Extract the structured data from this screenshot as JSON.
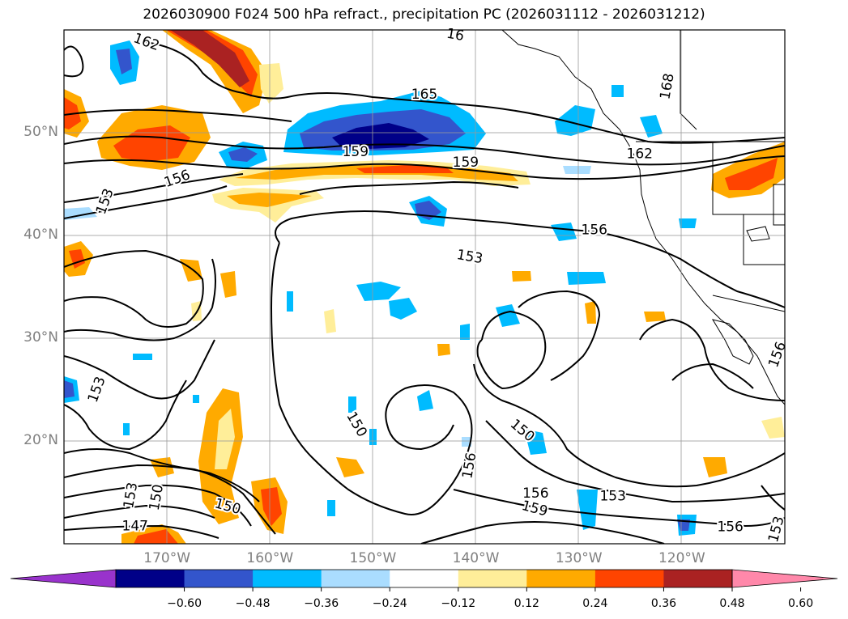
{
  "title": "2026030900 F024 500 hPa refract., precipitation PC (2026031112 - 2026031212)",
  "map": {
    "lon_range": [
      -180,
      -110
    ],
    "lat_range": [
      10,
      60
    ],
    "lat_labels": [
      {
        "lat": 50,
        "text": "50°N"
      },
      {
        "lat": 40,
        "text": "40°N"
      },
      {
        "lat": 30,
        "text": "30°N"
      },
      {
        "lat": 20,
        "text": "20°N"
      }
    ],
    "lon_labels": [
      {
        "lon": -170,
        "text": "170°W"
      },
      {
        "lon": -160,
        "text": "160°W"
      },
      {
        "lon": -150,
        "text": "150°W"
      },
      {
        "lon": -140,
        "text": "140°W"
      },
      {
        "lon": -130,
        "text": "130°W"
      },
      {
        "lon": -120,
        "text": "120°W"
      }
    ],
    "contour_labels": [
      {
        "text": "162",
        "lon": -172.0,
        "lat": 58.8,
        "angle": 20
      },
      {
        "text": "165",
        "lon": -145.0,
        "lat": 53.7,
        "angle": 0
      },
      {
        "text": "168",
        "lon": -121.4,
        "lat": 54.5,
        "angle": -80
      },
      {
        "text": "159",
        "lon": -151.7,
        "lat": 48.1,
        "angle": 0
      },
      {
        "text": "159",
        "lon": -141.0,
        "lat": 47.1,
        "angle": 0
      },
      {
        "text": "162",
        "lon": -124.1,
        "lat": 47.9,
        "angle": 0
      },
      {
        "text": "156",
        "lon": -169.0,
        "lat": 45.5,
        "angle": -20
      },
      {
        "text": "153",
        "lon": -176.0,
        "lat": 43.3,
        "angle": -70
      },
      {
        "text": "156",
        "lon": -128.5,
        "lat": 40.5,
        "angle": 0
      },
      {
        "text": "153",
        "lon": -140.6,
        "lat": 37.9,
        "angle": 10
      },
      {
        "text": "153",
        "lon": -176.8,
        "lat": 25.0,
        "angle": -70
      },
      {
        "text": "150",
        "lon": -151.6,
        "lat": 21.6,
        "angle": 60
      },
      {
        "text": "150",
        "lon": -135.5,
        "lat": 21.0,
        "angle": 40
      },
      {
        "text": "156",
        "lon": -140.6,
        "lat": 17.6,
        "angle": -80
      },
      {
        "text": "156",
        "lon": -134.2,
        "lat": 14.9,
        "angle": 0
      },
      {
        "text": "159",
        "lon": -134.3,
        "lat": 13.4,
        "angle": 15
      },
      {
        "text": "153",
        "lon": -126.7,
        "lat": 14.6,
        "angle": 0
      },
      {
        "text": "153",
        "lon": -173.5,
        "lat": 14.7,
        "angle": -80
      },
      {
        "text": "150",
        "lon": -171.0,
        "lat": 14.5,
        "angle": -80
      },
      {
        "text": "150",
        "lon": -164.1,
        "lat": 13.6,
        "angle": 15
      },
      {
        "text": "147",
        "lon": -173.1,
        "lat": 11.7,
        "angle": 0
      },
      {
        "text": "156",
        "lon": -115.3,
        "lat": 11.6,
        "angle": 0
      },
      {
        "text": "153",
        "lon": -110.8,
        "lat": 11.4,
        "angle": -75
      },
      {
        "text": "156",
        "lon": -110.7,
        "lat": 28.4,
        "angle": -70
      },
      {
        "text": "16",
        "lon": -142.0,
        "lat": 59.5,
        "angle": 10
      }
    ]
  },
  "colorbar": {
    "colors": [
      "#9933cc",
      "#000088",
      "#3355cc",
      "#00bbff",
      "#aaddff",
      "#ffffff",
      "#ffee99",
      "#ffaa00",
      "#ff4400",
      "#aa2222",
      "#ff88aa"
    ],
    "ticks": [
      "−0.60",
      "−0.48",
      "−0.36",
      "−0.24",
      "−0.12",
      "0.12",
      "0.24",
      "0.36",
      "0.48",
      "0.60"
    ]
  }
}
